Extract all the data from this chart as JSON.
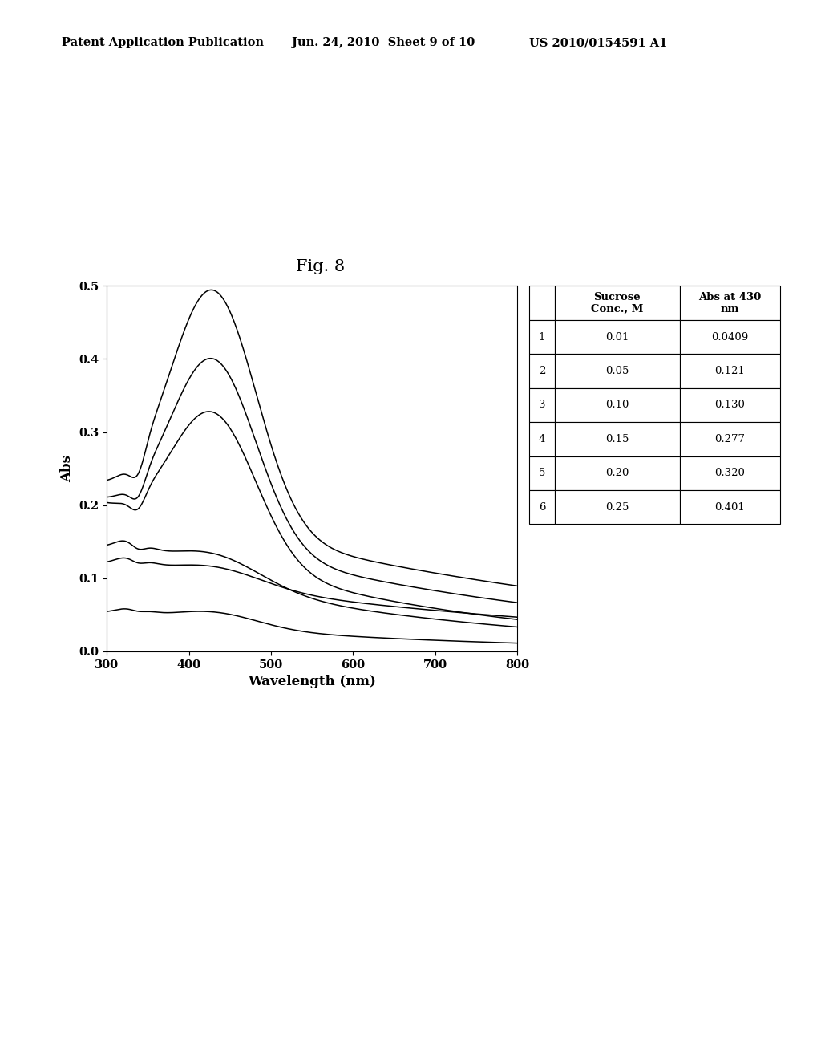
{
  "title": "Fig. 8",
  "header_left": "Patent Application Publication",
  "header_mid": "Jun. 24, 2010  Sheet 9 of 10",
  "header_right": "US 2010/0154591 A1",
  "xlabel": "Wavelength (nm)",
  "ylabel": "Abs",
  "xlim": [
    300,
    800
  ],
  "ylim": [
    0,
    0.5
  ],
  "yticks": [
    0,
    0.1,
    0.2,
    0.3,
    0.4,
    0.5
  ],
  "xticks": [
    300,
    400,
    500,
    600,
    700,
    800
  ],
  "table_rows": [
    [
      "1",
      "0.01",
      "0.0409"
    ],
    [
      "2",
      "0.05",
      "0.121"
    ],
    [
      "3",
      "0.10",
      "0.130"
    ],
    [
      "4",
      "0.15",
      "0.277"
    ],
    [
      "5",
      "0.20",
      "0.320"
    ],
    [
      "6",
      "0.25",
      "0.401"
    ]
  ],
  "background_color": "#ffffff",
  "line_color": "#000000"
}
